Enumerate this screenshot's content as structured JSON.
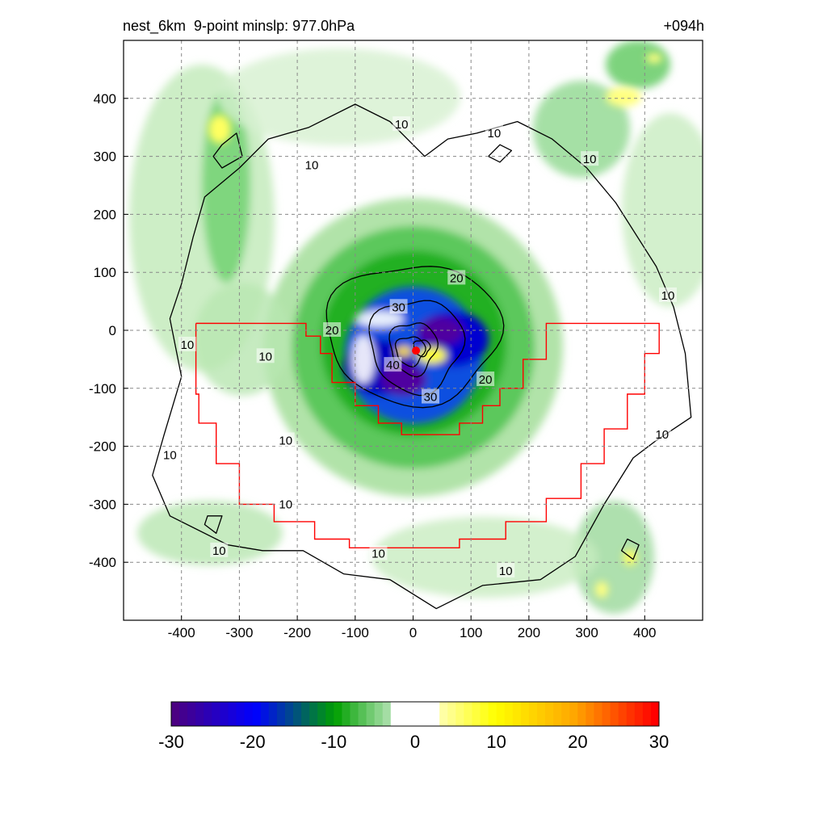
{
  "chart_data": {
    "type": "heatmap",
    "title": "nest_6km  9-point minslp: 977.0hPa",
    "forecast_hour": "+094h",
    "xlabel": "",
    "ylabel": "",
    "xlim": [
      -500,
      500
    ],
    "ylim": [
      -500,
      500
    ],
    "x_ticks": [
      -400,
      -300,
      -200,
      -100,
      0,
      100,
      200,
      300,
      400
    ],
    "y_ticks": [
      400,
      300,
      200,
      100,
      0,
      -100,
      -200,
      -300,
      -400
    ],
    "grid": true,
    "colorbar": {
      "range": [
        -30,
        30
      ],
      "ticks": [
        -30,
        -20,
        -10,
        0,
        10,
        20,
        30
      ],
      "colors": [
        "#4b0082",
        "#0000ff",
        "#00a000",
        "#ffffff",
        "#ffff00",
        "#ffa500",
        "#ff0000"
      ]
    },
    "contour_levels": [
      10,
      20,
      30,
      40
    ],
    "contour_labels": [
      {
        "text": "10",
        "x": -20,
        "y": 355
      },
      {
        "text": "10",
        "x": 140,
        "y": 340
      },
      {
        "text": "10",
        "x": 305,
        "y": 295
      },
      {
        "text": "10",
        "x": -175,
        "y": 285
      },
      {
        "text": "10",
        "x": 440,
        "y": 60
      },
      {
        "text": "10",
        "x": -390,
        "y": -25
      },
      {
        "text": "10",
        "x": -255,
        "y": -45
      },
      {
        "text": "10",
        "x": 430,
        "y": -180
      },
      {
        "text": "10",
        "x": -220,
        "y": -190
      },
      {
        "text": "10",
        "x": -420,
        "y": -215
      },
      {
        "text": "10",
        "x": -220,
        "y": -300
      },
      {
        "text": "10",
        "x": -335,
        "y": -380
      },
      {
        "text": "10",
        "x": -60,
        "y": -385
      },
      {
        "text": "10",
        "x": 160,
        "y": -415
      },
      {
        "text": "20",
        "x": 75,
        "y": 90
      },
      {
        "text": "20",
        "x": -140,
        "y": 0
      },
      {
        "text": "20",
        "x": 125,
        "y": -85
      },
      {
        "text": "30",
        "x": -25,
        "y": 40
      },
      {
        "text": "30",
        "x": 30,
        "y": -115
      },
      {
        "text": "40",
        "x": -35,
        "y": -60
      }
    ],
    "center_marker": {
      "x": 5,
      "y": -35,
      "color": "#ff0000"
    },
    "boundary_color": "#ff0000",
    "field_features": [
      {
        "x": 10,
        "y": 5,
        "value": -30
      },
      {
        "x": 80,
        "y": -20,
        "value": -22
      },
      {
        "x": -70,
        "y": -30,
        "value": -20
      },
      {
        "x": 40,
        "y": -70,
        "value": -26
      },
      {
        "x": -20,
        "y": -80,
        "value": -28
      },
      {
        "x": 45,
        "y": -45,
        "value": 12
      },
      {
        "x": -10,
        "y": -25,
        "value": 8
      },
      {
        "x": -335,
        "y": 350,
        "value": 8
      },
      {
        "x": 360,
        "y": 405,
        "value": 6
      },
      {
        "x": 370,
        "y": -390,
        "value": 5
      },
      {
        "x": 440,
        "y": 460,
        "value": 5
      }
    ]
  }
}
